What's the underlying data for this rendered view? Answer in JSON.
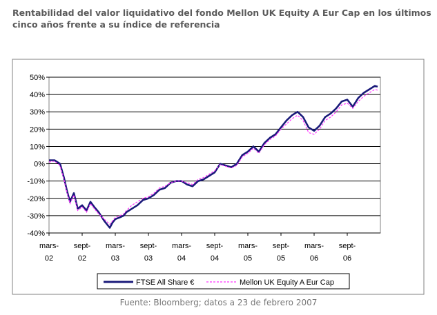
{
  "title_lines": [
    "Rentabilidad del valor liquidativo del fondo Mellon UK Equity A Eur Cap en los últimos",
    "cinco años frente a su índice de referencia"
  ],
  "source": "Fuente: Bloomberg; datos a 23 de febrero 2007",
  "colors": {
    "series1": "#1a1a7a",
    "series2": "#ff33ff",
    "grid": "#000000"
  },
  "chart_data": {
    "type": "line",
    "title": "Rentabilidad del valor liquidativo del fondo Mellon UK Equity A Eur Cap en los últimos cinco años frente a su índice de referencia",
    "xlabel": "",
    "ylabel": "",
    "xlim": [
      0,
      60
    ],
    "ylim": [
      -40,
      50
    ],
    "y_ticks": [
      50,
      40,
      30,
      20,
      10,
      0,
      -10,
      -20,
      -30,
      -40
    ],
    "y_tick_labels": [
      "50%",
      "40%",
      "30%",
      "20%",
      "10%",
      "0%",
      "-10%",
      "-20%",
      "-30%",
      "-40%"
    ],
    "x_ticks": [
      {
        "line1": "mars-",
        "line2": "02"
      },
      {
        "line1": "sept-",
        "line2": "02"
      },
      {
        "line1": "mars-",
        "line2": "03"
      },
      {
        "line1": "sept-",
        "line2": "03"
      },
      {
        "line1": "mars-",
        "line2": "04"
      },
      {
        "line1": "sept-",
        "line2": "04"
      },
      {
        "line1": "mars-",
        "line2": "05"
      },
      {
        "line1": "sept-",
        "line2": "05"
      },
      {
        "line1": "mars-",
        "line2": "06"
      },
      {
        "line1": "sept-",
        "line2": "06"
      }
    ],
    "grid": true,
    "legend_position": "bottom",
    "series": [
      {
        "name": "FTSE All Share €",
        "x": [
          0,
          1,
          2,
          2.7,
          3.2,
          3.8,
          4.5,
          5.2,
          6,
          6.8,
          7.5,
          8.2,
          9,
          10,
          11,
          11.5,
          12,
          12.8,
          13.5,
          14,
          15,
          16,
          17,
          18,
          19,
          20,
          21,
          22,
          23,
          24,
          25,
          26,
          27,
          28,
          29,
          30,
          31,
          32,
          33,
          34,
          35,
          36,
          37,
          38,
          39,
          40,
          41,
          42,
          43,
          44,
          45,
          46,
          47,
          48,
          49,
          50,
          51,
          52,
          53,
          54,
          55,
          56,
          57,
          58,
          59,
          59.5
        ],
        "values": [
          2,
          2,
          0,
          -8,
          -15,
          -22,
          -17,
          -26,
          -24,
          -27,
          -22,
          -25,
          -28,
          -33,
          -37,
          -34,
          -32,
          -31,
          -30,
          -28,
          -26,
          -24,
          -21,
          -20,
          -18,
          -15,
          -14,
          -11,
          -10,
          -10,
          -12,
          -13,
          -10,
          -9,
          -7,
          -5,
          0,
          -1,
          -2,
          0,
          5,
          7,
          10,
          7,
          12,
          15,
          17,
          21,
          25,
          28,
          30,
          27,
          21,
          19,
          22,
          27,
          29,
          32,
          36,
          37,
          33,
          38,
          41,
          43,
          45,
          44.5
        ]
      },
      {
        "name": "Mellon UK Equity A Eur Cap",
        "x": [
          0,
          1,
          2,
          2.7,
          3.2,
          3.8,
          4.5,
          5.2,
          6,
          6.8,
          7.5,
          8.2,
          9,
          10,
          11,
          11.5,
          12,
          12.8,
          13.5,
          14,
          15,
          16,
          17,
          18,
          19,
          20,
          21,
          22,
          23,
          24,
          25,
          26,
          27,
          28,
          29,
          30,
          31,
          32,
          33,
          34,
          35,
          36,
          37,
          38,
          39,
          40,
          41,
          42,
          43,
          44,
          45,
          46,
          47,
          48,
          49,
          50,
          51,
          52,
          53,
          54,
          55,
          56,
          57,
          58,
          59,
          59.5
        ],
        "values": [
          1,
          1.5,
          -1,
          -9,
          -16,
          -23,
          -18,
          -27,
          -25,
          -28,
          -23,
          -26,
          -29,
          -32,
          -35,
          -33,
          -31,
          -30,
          -29,
          -27,
          -24,
          -22,
          -20,
          -19,
          -17,
          -14,
          -13,
          -11,
          -10,
          -10,
          -11,
          -12,
          -9,
          -8,
          -6,
          -4,
          -0.5,
          -1.5,
          -2.5,
          -1,
          4,
          6,
          9,
          6,
          11,
          14,
          16,
          20,
          23,
          26,
          28,
          25,
          18,
          17,
          20,
          25,
          27,
          30,
          34,
          35,
          32,
          36,
          39,
          41,
          43,
          42.5
        ]
      }
    ]
  }
}
